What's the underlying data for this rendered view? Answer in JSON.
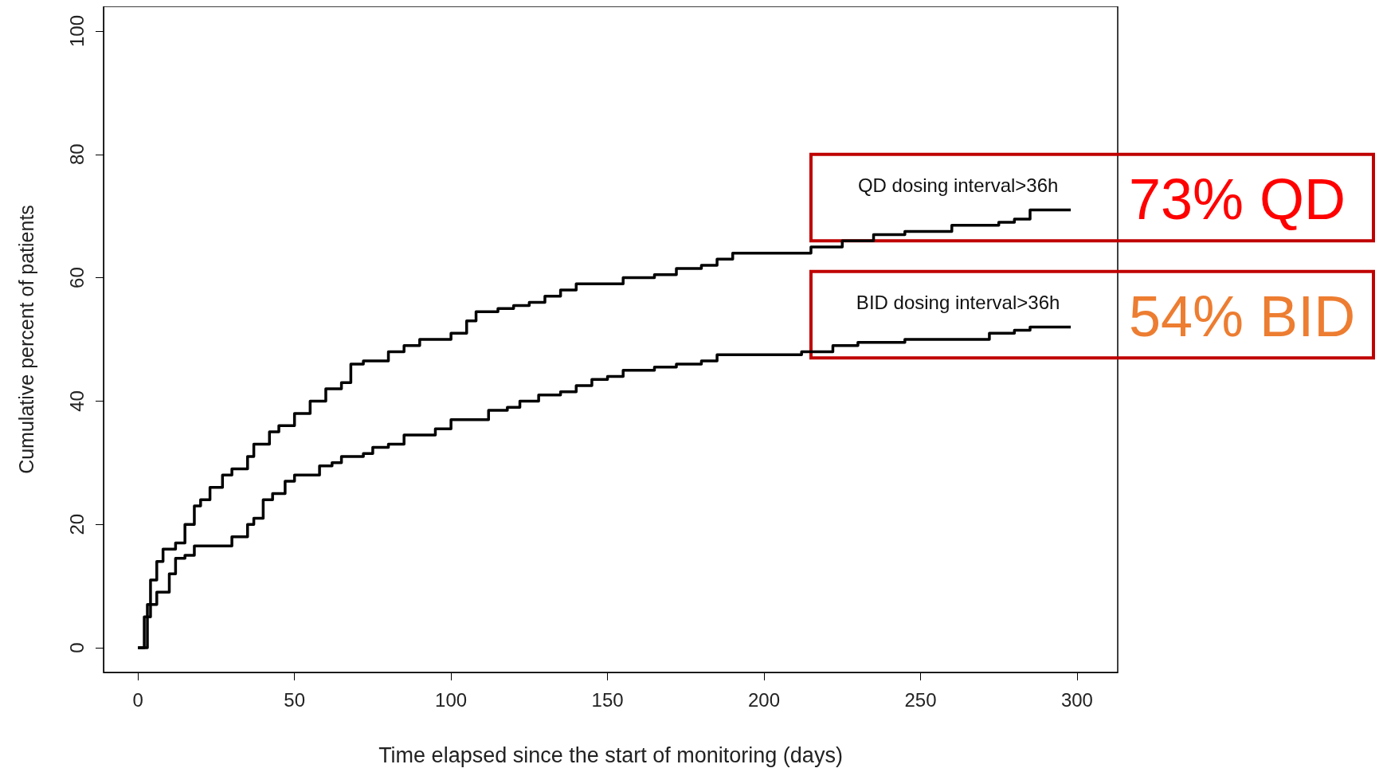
{
  "chart_data": {
    "type": "step",
    "xlabel": "Time elapsed since the start of monitoring (days)",
    "ylabel": "Cumulative percent of patients",
    "xlim": [
      -11,
      313
    ],
    "ylim": [
      -4,
      104
    ],
    "xticks": [
      0,
      50,
      100,
      150,
      200,
      250,
      300
    ],
    "yticks": [
      0,
      20,
      40,
      60,
      80,
      100
    ],
    "grid": false,
    "legend": false,
    "marker": "none",
    "line_style": "solid",
    "series": [
      {
        "name": "QD dosing interval>36h",
        "color": "#000000",
        "x": [
          0,
          2,
          4,
          6,
          8,
          12,
          15,
          18,
          20,
          23,
          27,
          30,
          35,
          37,
          42,
          45,
          50,
          55,
          60,
          65,
          68,
          72,
          80,
          85,
          90,
          100,
          105,
          108,
          115,
          120,
          125,
          130,
          135,
          140,
          150,
          155,
          165,
          172,
          180,
          185,
          190,
          210,
          215,
          225,
          235,
          245,
          260,
          275,
          280,
          285,
          298
        ],
        "values": [
          0,
          5,
          11,
          14,
          16,
          17,
          20,
          23,
          24,
          26,
          28,
          29,
          31,
          33,
          35,
          36,
          38,
          40,
          42,
          43,
          46,
          46.5,
          48,
          49,
          50,
          51,
          53,
          54.5,
          55,
          55.5,
          56,
          57,
          58,
          59,
          59,
          60,
          60.5,
          61.5,
          62,
          63,
          64,
          64,
          65,
          66,
          67,
          67.5,
          68.5,
          69,
          69.5,
          71,
          71
        ]
      },
      {
        "name": "BID dosing interval>36h",
        "color": "#000000",
        "x": [
          0,
          3,
          6,
          10,
          12,
          15,
          18,
          25,
          30,
          35,
          37,
          40,
          43,
          47,
          50,
          55,
          58,
          62,
          65,
          72,
          75,
          80,
          85,
          92,
          95,
          100,
          108,
          112,
          118,
          122,
          128,
          135,
          140,
          145,
          150,
          155,
          165,
          172,
          180,
          185,
          200,
          212,
          218,
          222,
          230,
          245,
          260,
          272,
          280,
          285,
          298
        ],
        "values": [
          0,
          7,
          9,
          12,
          14.5,
          15,
          16.5,
          16.5,
          18,
          20,
          21,
          24,
          25,
          27,
          28,
          28,
          29.5,
          30,
          31,
          31.5,
          32.5,
          33,
          34.5,
          34.5,
          35.5,
          37,
          37,
          38.5,
          39,
          40,
          41,
          41.5,
          42.5,
          43.5,
          44,
          45,
          45.5,
          46,
          46.5,
          47.5,
          47.5,
          48,
          48,
          49,
          49.5,
          50,
          50,
          51,
          51.5,
          52,
          52
        ]
      }
    ],
    "annotations": [
      "73% QD",
      "54% BID"
    ]
  }
}
